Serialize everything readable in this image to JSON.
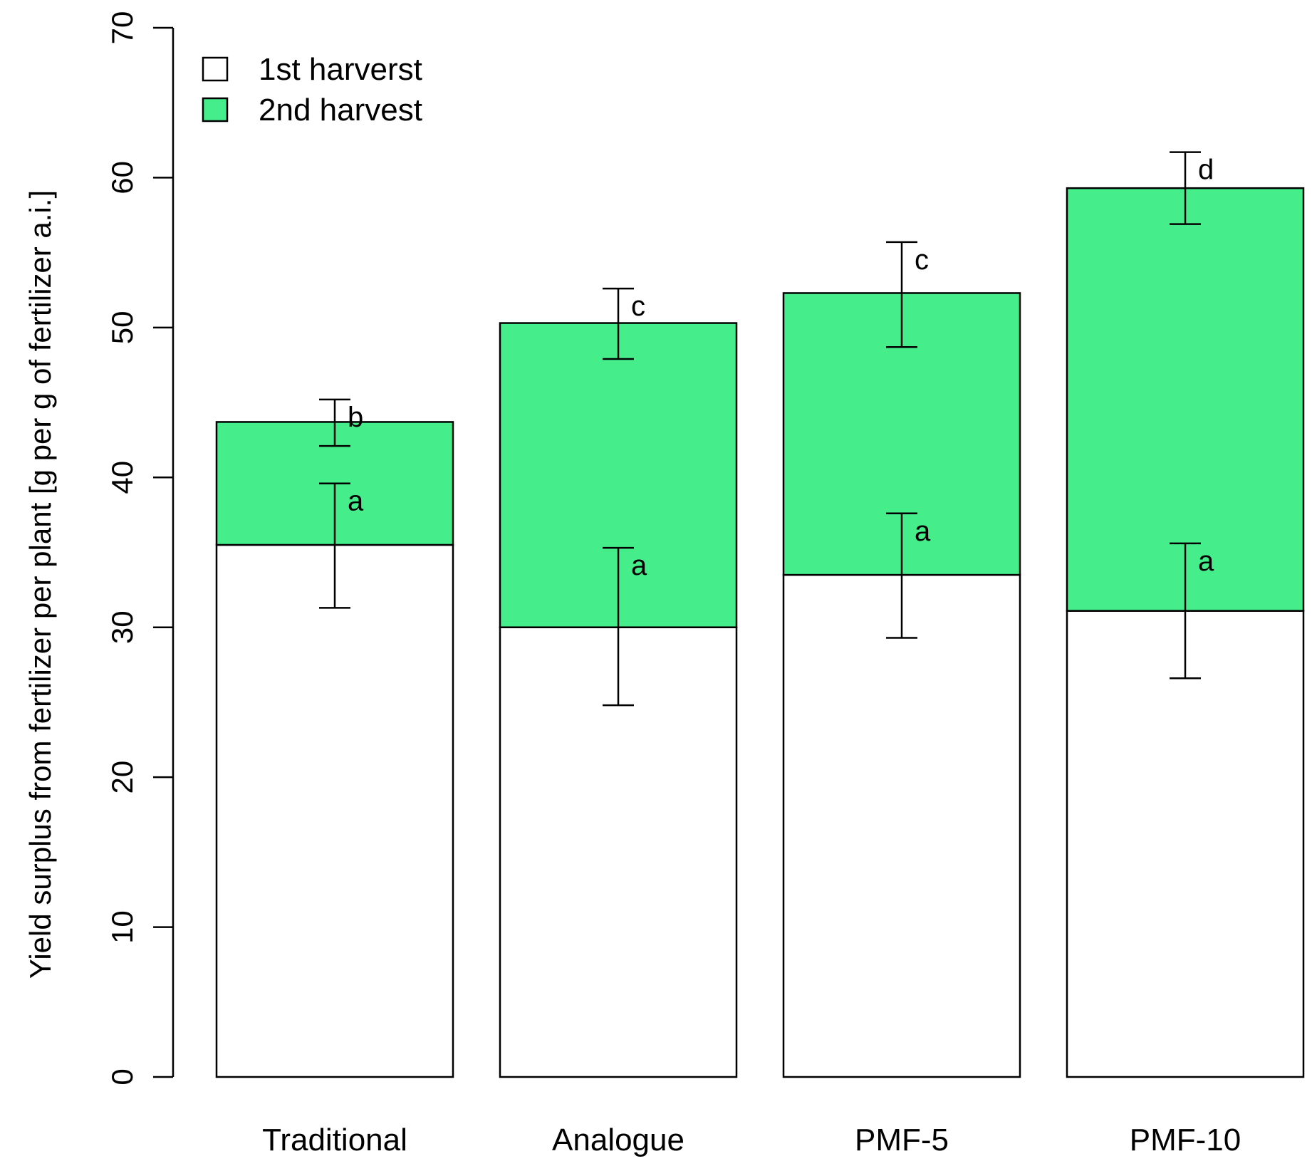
{
  "chart_data": {
    "type": "bar",
    "stacked": true,
    "title": "",
    "xlabel": "",
    "ylabel": "Yield surplus from fertilizer per plant [g per g of fertilizer a.i.]",
    "ylim": [
      0,
      70
    ],
    "yticks": [
      0,
      10,
      20,
      30,
      40,
      50,
      60,
      70
    ],
    "grid": false,
    "legend_position": "top-left",
    "categories": [
      "Traditional",
      "Analogue",
      "PMF-5",
      "PMF-10"
    ],
    "series": [
      {
        "name": "1st harverst",
        "color": "#ffffff",
        "values": [
          35.5,
          30.0,
          33.5,
          31.1
        ],
        "error": [
          {
            "low": 31.3,
            "high": 39.6
          },
          {
            "low": 24.8,
            "high": 35.3
          },
          {
            "low": 29.3,
            "high": 37.6
          },
          {
            "low": 26.6,
            "high": 35.6
          }
        ],
        "letters": [
          "a",
          "a",
          "a",
          "a"
        ]
      },
      {
        "name": "2nd harvest",
        "color": "#46ee8b",
        "values": [
          8.2,
          20.3,
          18.8,
          28.2
        ],
        "error": [
          {
            "low": 42.1,
            "high": 45.2
          },
          {
            "low": 47.9,
            "high": 52.6
          },
          {
            "low": 48.7,
            "high": 55.7
          },
          {
            "low": 56.9,
            "high": 61.7
          }
        ],
        "letters": [
          "b",
          "c",
          "c",
          "d"
        ]
      }
    ]
  }
}
